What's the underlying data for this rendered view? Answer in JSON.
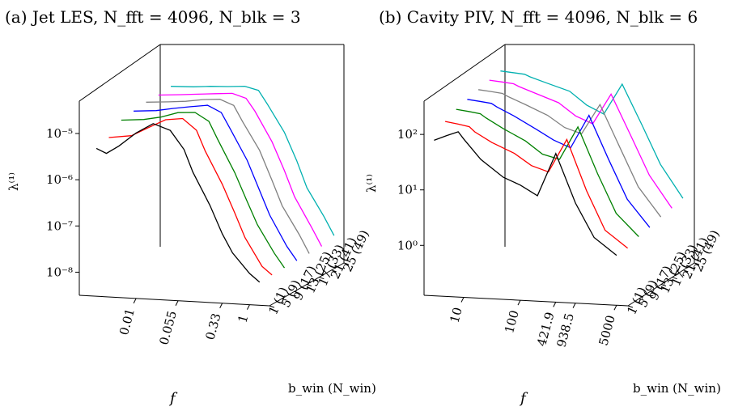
{
  "chart_data": [
    {
      "type": "line",
      "title": "(a) Jet LES, N_fft = 4096, N_blk = 3",
      "xlabel": "f",
      "ylabel": "λ⁽¹⁾",
      "zlabel": "b_win (N_win)",
      "x_scale": "log",
      "y_scale": "log",
      "x_ticks": [
        "0.01",
        "0.055",
        "0.33",
        "1"
      ],
      "y_ticks": [
        "10⁻⁵",
        "10⁻⁶",
        "10⁻⁷",
        "10⁻⁸"
      ],
      "depth_ticks": [
        "1 (1)",
        "5 (9)",
        "9 (17)",
        "13 (25)",
        "17 (33)",
        "21 (41)",
        "25 (49)"
      ],
      "series": [
        {
          "name": "1 (1)",
          "color": "#000000",
          "x": [
            0.002,
            0.003,
            0.005,
            0.01,
            0.02,
            0.04,
            0.07,
            0.1,
            0.2,
            0.33,
            0.5,
            1.0,
            1.5
          ],
          "y": [
            5e-06,
            4e-06,
            6e-06,
            1.2e-05,
            2e-05,
            1.5e-05,
            6e-06,
            2e-06,
            4e-07,
            1e-07,
            4e-08,
            1.5e-08,
            1e-08
          ]
        },
        {
          "name": "5 (9)",
          "color": "#ff0000",
          "x": [
            0.002,
            0.005,
            0.01,
            0.02,
            0.04,
            0.07,
            0.1,
            0.2,
            0.33,
            0.5,
            1.0,
            1.5
          ],
          "y": [
            6e-06,
            7e-06,
            1.1e-05,
            1.7e-05,
            1.9e-05,
            1.1e-05,
            4e-06,
            8e-07,
            2e-07,
            6e-08,
            1.5e-08,
            1e-08
          ]
        },
        {
          "name": "9 (17)",
          "color": "#008000",
          "x": [
            0.002,
            0.005,
            0.01,
            0.02,
            0.04,
            0.07,
            0.1,
            0.2,
            0.33,
            0.5,
            1.0,
            1.5
          ],
          "y": [
            1e-05,
            1.1e-05,
            1.3e-05,
            1.7e-05,
            1.8e-05,
            1.2e-05,
            5e-06,
            1e-06,
            2.5e-07,
            8e-08,
            2e-08,
            1e-08
          ]
        },
        {
          "name": "13 (25)",
          "color": "#0000ff",
          "x": [
            0.002,
            0.005,
            0.01,
            0.02,
            0.04,
            0.07,
            0.1,
            0.2,
            0.33,
            0.5,
            1.0,
            1.5
          ],
          "y": [
            1.1e-05,
            1.2e-05,
            1.4e-05,
            1.6e-05,
            1.8e-05,
            1.3e-05,
            6e-06,
            1.3e-06,
            3e-07,
            9e-08,
            2e-08,
            1e-08
          ]
        },
        {
          "name": "17 (33)",
          "color": "#808080",
          "x": [
            0.002,
            0.005,
            0.01,
            0.02,
            0.04,
            0.07,
            0.1,
            0.2,
            0.33,
            0.5,
            1.0,
            1.5
          ],
          "y": [
            1.2e-05,
            1.3e-05,
            1.4e-05,
            1.6e-05,
            1.7e-05,
            1.3e-05,
            6e-06,
            1.5e-06,
            3.5e-07,
            1e-07,
            2.5e-08,
            1e-08
          ]
        },
        {
          "name": "21 (41)",
          "color": "#ff00ff",
          "x": [
            0.002,
            0.005,
            0.01,
            0.02,
            0.04,
            0.07,
            0.1,
            0.2,
            0.33,
            0.5,
            1.0,
            1.5
          ],
          "y": [
            1.2e-05,
            1.3e-05,
            1.4e-05,
            1.5e-05,
            1.6e-05,
            1.3e-05,
            7e-06,
            1.6e-06,
            4e-07,
            1.1e-07,
            2.5e-08,
            1e-08
          ]
        },
        {
          "name": "25 (49)",
          "color": "#00b0b0",
          "x": [
            0.002,
            0.005,
            0.01,
            0.02,
            0.04,
            0.07,
            0.1,
            0.2,
            0.33,
            0.5,
            1.0,
            1.5
          ],
          "y": [
            1.3e-05,
            1.35e-05,
            1.45e-05,
            1.5e-05,
            1.6e-05,
            1.35e-05,
            7e-06,
            1.8e-06,
            4.5e-07,
            1.2e-07,
            3e-08,
            1.2e-08
          ]
        }
      ]
    },
    {
      "type": "line",
      "title": "(b) Cavity PIV, N_fft = 4096, N_blk = 6",
      "xlabel": "f",
      "ylabel": "λ⁽¹⁾",
      "zlabel": "b_win (N_win)",
      "x_scale": "log",
      "y_scale": "log",
      "x_ticks": [
        "10",
        "100",
        "421.9",
        "938.5",
        "5000"
      ],
      "y_ticks": [
        "10²",
        "10¹",
        "10⁰"
      ],
      "depth_ticks": [
        "1 (1)",
        "5 (9)",
        "9 (17)",
        "13 (25)",
        "17 (33)",
        "21 (41)",
        "25 (49)"
      ],
      "series": [
        {
          "name": "1 (1)",
          "color": "#000000",
          "x": [
            3,
            5,
            8,
            10,
            20,
            50,
            100,
            200,
            421.9,
            938.5,
            2000,
            5000
          ],
          "y": [
            80,
            100,
            120,
            90,
            40,
            20,
            15,
            10,
            60,
            8,
            2,
            1
          ]
        },
        {
          "name": "5 (9)",
          "color": "#ff0000",
          "x": [
            3,
            5,
            8,
            10,
            20,
            50,
            100,
            200,
            421.9,
            938.5,
            2000,
            5000
          ],
          "y": [
            130,
            120,
            110,
            90,
            60,
            40,
            25,
            20,
            80,
            10,
            2,
            1
          ]
        },
        {
          "name": "9 (17)",
          "color": "#008000",
          "x": [
            3,
            5,
            8,
            10,
            20,
            50,
            100,
            200,
            421.9,
            938.5,
            2000,
            5000
          ],
          "y": [
            160,
            150,
            140,
            120,
            80,
            50,
            30,
            25,
            100,
            15,
            3,
            1.2
          ]
        },
        {
          "name": "13 (25)",
          "color": "#0000ff",
          "x": [
            3,
            5,
            8,
            10,
            20,
            50,
            100,
            200,
            421.9,
            938.5,
            2000,
            5000
          ],
          "y": [
            180,
            170,
            160,
            140,
            100,
            60,
            40,
            30,
            120,
            20,
            4,
            1.3
          ]
        },
        {
          "name": "17 (33)",
          "color": "#808080",
          "x": [
            3,
            5,
            8,
            10,
            20,
            50,
            100,
            200,
            421.9,
            938.5,
            2000,
            5000
          ],
          "y": [
            200,
            190,
            180,
            160,
            120,
            80,
            50,
            40,
            140,
            25,
            5,
            1.5
          ]
        },
        {
          "name": "21 (41)",
          "color": "#ff00ff",
          "x": [
            3,
            5,
            8,
            10,
            20,
            50,
            100,
            200,
            421.9,
            938.5,
            2000,
            5000
          ],
          "y": [
            220,
            210,
            200,
            180,
            140,
            100,
            60,
            45,
            160,
            30,
            6,
            1.6
          ]
        },
        {
          "name": "25 (49)",
          "color": "#00b0b0",
          "x": [
            3,
            5,
            8,
            10,
            20,
            50,
            100,
            200,
            421.9,
            938.5,
            2000,
            5000
          ],
          "y": [
            240,
            230,
            220,
            200,
            160,
            120,
            70,
            50,
            180,
            35,
            7,
            1.8
          ]
        }
      ]
    }
  ]
}
